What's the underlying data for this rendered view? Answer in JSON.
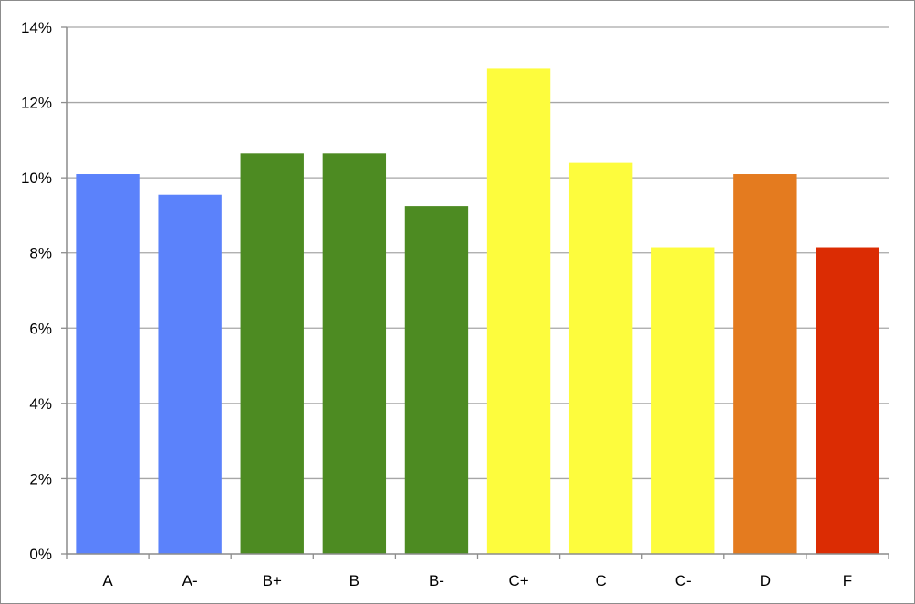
{
  "chart_data": {
    "type": "bar",
    "categories": [
      "A",
      "A-",
      "B+",
      "B",
      "B-",
      "C+",
      "C",
      "C-",
      "D",
      "F"
    ],
    "values": [
      10.1,
      9.55,
      10.65,
      10.65,
      9.25,
      12.9,
      10.4,
      8.15,
      10.1,
      8.15
    ],
    "bar_colors": [
      "#5b82fb",
      "#5b82fb",
      "#4d8b22",
      "#4d8b22",
      "#4d8b22",
      "#fdfc3d",
      "#fdfc3d",
      "#fdfc3d",
      "#e47b1f",
      "#db2c03"
    ],
    "title": "",
    "xlabel": "",
    "ylabel": "",
    "ylim": [
      0,
      14
    ],
    "y_ticks": [
      0,
      2,
      4,
      6,
      8,
      10,
      12,
      14
    ],
    "y_tick_labels": [
      "0%",
      "2%",
      "4%",
      "6%",
      "8%",
      "10%",
      "12%",
      "14%"
    ],
    "grid": true,
    "legend": "none",
    "colors": {
      "gridline": "#a6a6a6",
      "axis": "#8c8c8c",
      "frame_border": "#8c8c8c",
      "background": "#ffffff"
    }
  }
}
